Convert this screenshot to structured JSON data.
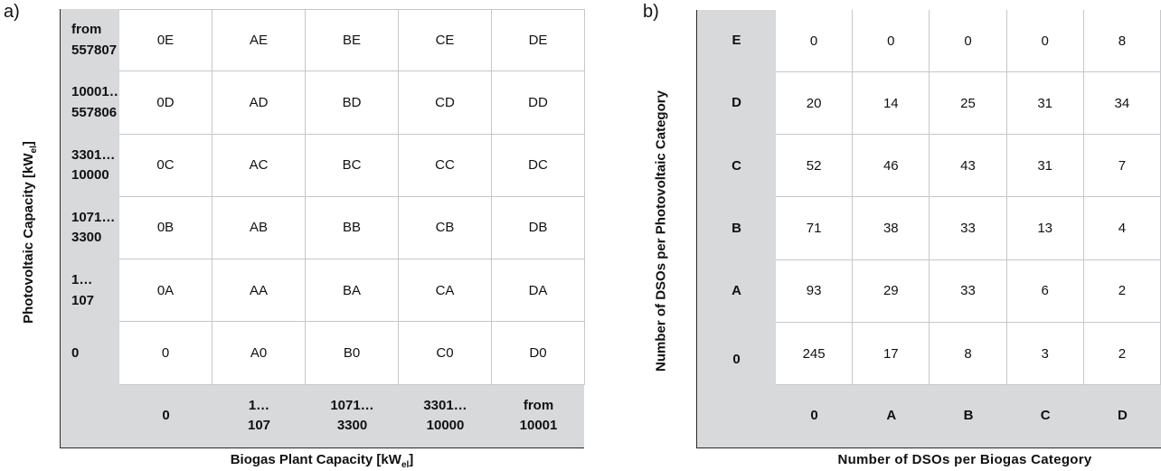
{
  "chart_data": [
    {
      "type": "table",
      "panel": "a)",
      "ylabel": "Photovoltaic Capacity [kWel]",
      "xlabel": "Biogas Plant Capacity [kWel]",
      "row_headers": [
        "from\n557807",
        "10001…\n557806",
        "3301…\n10000",
        "1071…\n3300",
        "1…\n107",
        "0"
      ],
      "column_headers": [
        "0",
        "1…\n107",
        "1071…\n3300",
        "3301…\n10000",
        "from\n10001"
      ],
      "cells": [
        [
          "0E",
          "AE",
          "BE",
          "CE",
          "DE"
        ],
        [
          "0D",
          "AD",
          "BD",
          "CD",
          "DD"
        ],
        [
          "0C",
          "AC",
          "BC",
          "CC",
          "DC"
        ],
        [
          "0B",
          "AB",
          "BB",
          "CB",
          "DB"
        ],
        [
          "0A",
          "AA",
          "BA",
          "CA",
          "DA"
        ],
        [
          "0",
          "A0",
          "B0",
          "C0",
          "D0"
        ]
      ]
    },
    {
      "type": "table",
      "panel": "b)",
      "ylabel": "Number of DSOs per Photovoltaic Category",
      "xlabel": "Number of DSOs per Biogas Category",
      "row_headers": [
        "E",
        "D",
        "C",
        "B",
        "A",
        "0"
      ],
      "column_headers": [
        "0",
        "A",
        "B",
        "C",
        "D"
      ],
      "values": [
        [
          0,
          0,
          0,
          0,
          8
        ],
        [
          20,
          14,
          25,
          31,
          34
        ],
        [
          52,
          46,
          43,
          31,
          7
        ],
        [
          71,
          38,
          33,
          13,
          4
        ],
        [
          93,
          29,
          33,
          6,
          2
        ],
        [
          245,
          17,
          8,
          3,
          2
        ]
      ]
    }
  ]
}
